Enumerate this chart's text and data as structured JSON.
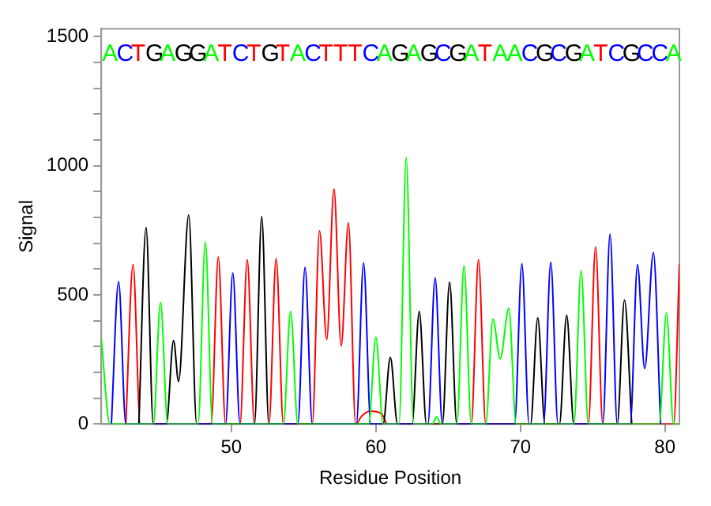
{
  "chart_data": {
    "type": "line",
    "xlabel": "Residue Position",
    "ylabel": "Signal",
    "xlim": [
      41,
      81
    ],
    "xticks": [
      50,
      60,
      70,
      80
    ],
    "ylim": [
      0,
      1530
    ],
    "yticks": [
      0,
      {
        "value": 100,
        "label": null
      },
      {
        "value": 200,
        "label": null
      },
      {
        "value": 300,
        "label": null
      },
      {
        "value": 400,
        "label": null
      },
      500,
      {
        "value": 600,
        "label": null
      },
      {
        "value": 700,
        "label": null
      },
      {
        "value": 800,
        "label": null
      },
      {
        "value": 900,
        "label": null
      },
      1000,
      {
        "value": 1100,
        "label": null
      },
      {
        "value": 1200,
        "label": null
      },
      {
        "value": 1300,
        "label": null
      },
      {
        "value": 1400,
        "label": null
      },
      1500
    ],
    "grid": false,
    "legend": false,
    "marker": "none",
    "line_style": "solid",
    "series": [
      {
        "color": "#00ff00",
        "x": [
          41,
          41.6,
          44.6,
          45.1,
          45.6,
          47.7,
          48.2,
          48.7,
          53.6,
          54.1,
          54.6,
          59.5,
          60.0,
          60.5,
          61.6,
          62.1,
          62.6,
          63.9,
          64.2,
          64.5,
          65.6,
          66.1,
          66.6,
          67.6,
          68.1,
          68.6,
          69.2,
          69.7,
          73.7,
          74.2,
          74.7,
          79.6,
          80.1,
          80.6,
          81
        ],
        "values": [
          330,
          0,
          0,
          471,
          0,
          0,
          705,
          0,
          0,
          436,
          0,
          0,
          336,
          0,
          0,
          1032,
          0,
          0,
          28,
          0,
          0,
          613,
          0,
          0,
          406,
          252,
          449,
          0,
          0,
          593,
          0,
          0,
          430,
          0,
          0
        ]
      },
      {
        "color": "#0000ff",
        "x": [
          41.7,
          42.2,
          42.7,
          49.6,
          50.1,
          50.6,
          54.6,
          55.1,
          55.6,
          58.65,
          59.15,
          59.65,
          63.6,
          64.1,
          64.6,
          69.6,
          70.1,
          70.6,
          71.6,
          72.1,
          72.6,
          75.7,
          76.2,
          76.7,
          77.6,
          78.1,
          78.6,
          79.2,
          79.7
        ],
        "values": [
          0,
          551,
          0,
          0,
          585,
          0,
          0,
          607,
          0,
          0,
          624,
          0,
          0,
          566,
          0,
          0,
          621,
          0,
          0,
          626,
          0,
          0,
          735,
          0,
          0,
          617,
          215,
          664,
          0
        ]
      },
      {
        "color": "#000000",
        "x": [
          43.6,
          44.1,
          44.6,
          45.5,
          46.0,
          46.35,
          47.05,
          47.6,
          51.6,
          52.1,
          52.6,
          60.5,
          61.0,
          61.5,
          62.5,
          63.0,
          63.5,
          64.6,
          65.1,
          65.6,
          70.7,
          71.2,
          71.7,
          72.7,
          73.2,
          73.7,
          76.7,
          77.2,
          77.7
        ],
        "values": [
          0,
          761,
          0,
          0,
          323,
          165,
          809,
          0,
          0,
          804,
          0,
          0,
          258,
          0,
          0,
          436,
          0,
          0,
          550,
          0,
          0,
          411,
          0,
          0,
          421,
          0,
          0,
          480,
          0
        ]
      },
      {
        "color": "#ff0000",
        "x": [
          42.7,
          43.2,
          43.7,
          48.6,
          49.1,
          49.6,
          50.6,
          51.1,
          51.6,
          52.6,
          53.1,
          53.6,
          55.6,
          56.1,
          56.6,
          57.1,
          57.6,
          58.1,
          58.6,
          59.0,
          59.6,
          60.4,
          60.8,
          66.6,
          67.1,
          67.6,
          74.7,
          75.2,
          75.7,
          80.6,
          81
        ],
        "values": [
          0,
          617,
          0,
          0,
          647,
          0,
          0,
          636,
          0,
          0,
          641,
          0,
          0,
          748,
          327,
          910,
          303,
          779,
          0,
          30,
          50,
          40,
          0,
          0,
          636,
          0,
          0,
          686,
          0,
          0,
          620
        ]
      }
    ],
    "annotations": [
      "A",
      "C",
      "T",
      "G",
      "A",
      "G",
      "G",
      "A",
      "T",
      "C",
      "T",
      "G",
      "T",
      "A",
      "C",
      "T",
      "T",
      "T",
      "C",
      "A",
      "G",
      "A",
      "G",
      "C",
      "G",
      "A",
      "T",
      "A",
      "A",
      "C",
      "G",
      "C",
      "G",
      "A",
      "T",
      "C",
      "G",
      "C",
      "C",
      "A"
    ]
  }
}
